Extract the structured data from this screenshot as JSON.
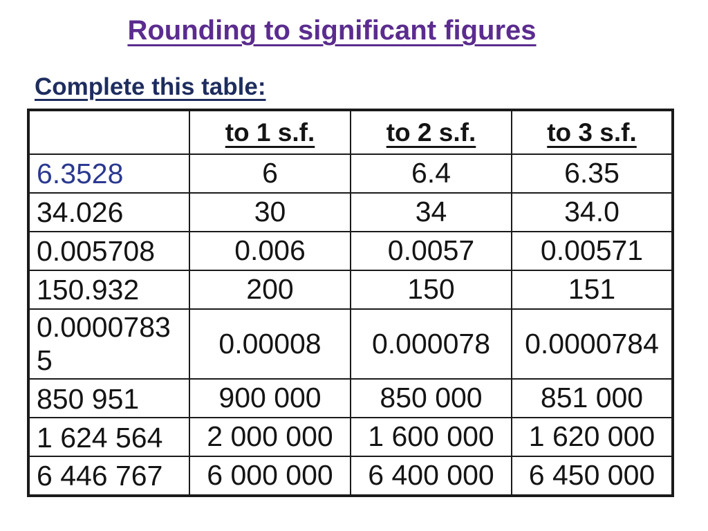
{
  "colors": {
    "title": "#5B2C8F",
    "subtitle": "#1E2D5F",
    "highlighted_value": "#2B3990",
    "table_text": "#141414",
    "border": "#1A1A1A",
    "background": "#FFFFFF"
  },
  "title": "Rounding to significant figures",
  "subtitle": "Complete this table:",
  "table": {
    "corner_label": "",
    "col_headers": [
      "to 1 s.f.",
      "to 2 s.f.",
      "to 3 s.f."
    ],
    "rows": [
      {
        "original": "6.3528",
        "answers": [
          "6",
          "6.4",
          "6.35"
        ]
      },
      {
        "original": "34.026",
        "answers": [
          "30",
          "34",
          "34.0"
        ]
      },
      {
        "original": "0.005708",
        "answers": [
          "0.006",
          "0.0057",
          "0.00571"
        ]
      },
      {
        "original": "150.932",
        "answers": [
          "200",
          "150",
          "151"
        ]
      },
      {
        "original": "0.00007835",
        "answers": [
          "0.00008",
          "0.000078",
          "0.0000784"
        ]
      },
      {
        "original": "850 951",
        "answers": [
          "900 000",
          "850 000",
          "851 000"
        ]
      },
      {
        "original": "1 624 564",
        "answers": [
          "2 000 000",
          "1 600 000",
          "1 620 000"
        ]
      },
      {
        "original": "6 446 767",
        "answers": [
          "6 000 000",
          "6 400 000",
          "6 450 000"
        ]
      }
    ]
  }
}
